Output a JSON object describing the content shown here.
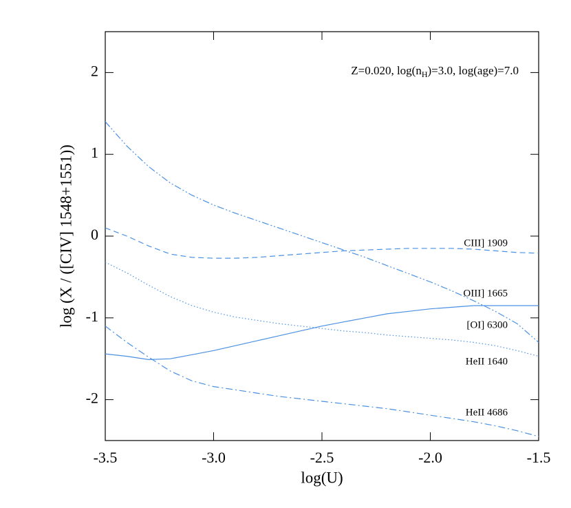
{
  "chart_data": {
    "type": "line",
    "annotation": [
      "Z=0.020, log(n",
      "H",
      ")=3.0, log(age)=7.0"
    ],
    "xlabel": "log(U)",
    "ylabel": "log (X / ([CIV] 1548+1551))",
    "x": [
      -3.5,
      -3.4,
      -3.3,
      -3.2,
      -3.1,
      -3.0,
      -2.9,
      -2.8,
      -2.7,
      -2.6,
      -2.5,
      -2.4,
      -2.3,
      -2.2,
      -2.1,
      -2.0,
      -1.9,
      -1.8,
      -1.7,
      -1.6,
      -1.5
    ],
    "series": [
      {
        "name": "CIII] 1909",
        "color": "#4a90e2",
        "style": "dashed",
        "values": [
          0.1,
          0.0,
          -0.12,
          -0.22,
          -0.26,
          -0.27,
          -0.27,
          -0.26,
          -0.24,
          -0.22,
          -0.2,
          -0.18,
          -0.17,
          -0.16,
          -0.15,
          -0.15,
          -0.15,
          -0.16,
          -0.18,
          -0.2,
          -0.21
        ]
      },
      {
        "name": "OIII] 1665",
        "color": "#4a90e2",
        "style": "solid",
        "values": [
          -1.44,
          -1.47,
          -1.51,
          -1.5,
          -1.45,
          -1.4,
          -1.34,
          -1.28,
          -1.22,
          -1.16,
          -1.1,
          -1.05,
          -1.0,
          -0.95,
          -0.92,
          -0.89,
          -0.87,
          -0.85,
          -0.85,
          -0.85,
          -0.85
        ]
      },
      {
        "name": "[OI] 6300",
        "color": "#4a90e2",
        "style": "dash-dot-dot",
        "values": [
          1.4,
          1.1,
          0.85,
          0.65,
          0.5,
          0.38,
          0.28,
          0.19,
          0.1,
          0.01,
          -0.08,
          -0.17,
          -0.26,
          -0.36,
          -0.46,
          -0.56,
          -0.67,
          -0.79,
          -0.92,
          -1.07,
          -1.3
        ]
      },
      {
        "name": "HeII 1640",
        "color": "#4a90e2",
        "style": "dotted",
        "values": [
          -0.32,
          -0.45,
          -0.6,
          -0.74,
          -0.85,
          -0.93,
          -0.99,
          -1.03,
          -1.07,
          -1.1,
          -1.13,
          -1.16,
          -1.18,
          -1.21,
          -1.23,
          -1.25,
          -1.27,
          -1.3,
          -1.34,
          -1.4,
          -1.47
        ]
      },
      {
        "name": "HeII 4686",
        "color": "#4a90e2",
        "style": "dash-dot",
        "values": [
          -1.1,
          -1.3,
          -1.48,
          -1.65,
          -1.77,
          -1.84,
          -1.88,
          -1.92,
          -1.96,
          -1.99,
          -2.02,
          -2.05,
          -2.08,
          -2.11,
          -2.15,
          -2.19,
          -2.23,
          -2.27,
          -2.32,
          -2.38,
          -2.45
        ]
      }
    ],
    "xlim": [
      -3.5,
      -1.5
    ],
    "xticks": [
      -3.5,
      {
        "value": -3,
        "label": "-3.0"
      },
      -2.5,
      {
        "value": -2,
        "label": "-2.0"
      },
      -1.5
    ],
    "ylim": [
      -2.5,
      2.5
    ],
    "yticks": [
      -2,
      -1,
      0,
      1,
      2
    ]
  }
}
